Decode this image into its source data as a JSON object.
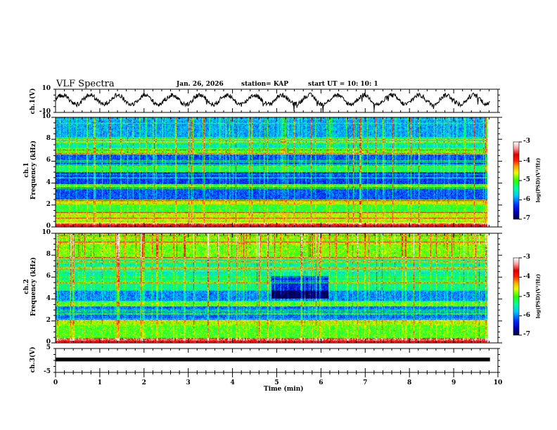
{
  "header": {
    "title": "VLF Spectra",
    "date": "Jan. 26, 2026",
    "station": "station= KAP",
    "start": "start  UT =   10: 10: 1"
  },
  "chart_data": [
    {
      "type": "line",
      "name": "ch1-waveform",
      "ylabel": "ch.1(V)",
      "ylim": [
        -10,
        10
      ],
      "yticks": [
        "10",
        "-10"
      ],
      "xlim": [
        0,
        10
      ],
      "x_end": 9.82,
      "description_values": {
        "baseline": 1.0,
        "oscillation_amplitude": 4.0,
        "oscillation_period_min": 0.62,
        "noise_amplitude": 2.0
      }
    },
    {
      "type": "heatmap",
      "name": "ch1-spectrogram",
      "ylabel_line1": "ch.1",
      "ylabel_line2": "Frequency  (kHz)",
      "ylim": [
        0,
        10
      ],
      "yticks": [
        "0",
        "2",
        "4",
        "6",
        "8",
        "10"
      ],
      "xlim": [
        0,
        10
      ],
      "x_end": 9.82,
      "colorbar": {
        "label": "log(PSD)(V²/Hz)",
        "range": [
          -7,
          -3
        ],
        "ticks": [
          "-3",
          "-4",
          "-5",
          "-6",
          "-7"
        ]
      },
      "bands_khz": [
        {
          "f0": 0.0,
          "f1": 0.35,
          "level": -3.6
        },
        {
          "f0": 0.35,
          "f1": 1.3,
          "level": -4.7
        },
        {
          "f0": 1.3,
          "f1": 2.05,
          "level": -5.1
        },
        {
          "f0": 2.05,
          "f1": 2.5,
          "level": -4.6
        },
        {
          "f0": 2.5,
          "f1": 3.6,
          "level": -6.2
        },
        {
          "f0": 3.6,
          "f1": 3.9,
          "level": -5.0
        },
        {
          "f0": 3.9,
          "f1": 5.0,
          "level": -6.3
        },
        {
          "f0": 5.0,
          "f1": 5.6,
          "level": -5.3
        },
        {
          "f0": 5.6,
          "f1": 6.6,
          "level": -6.2
        },
        {
          "f0": 6.6,
          "f1": 7.2,
          "level": -5.0
        },
        {
          "f0": 7.2,
          "f1": 8.2,
          "level": -5.6
        },
        {
          "f0": 8.2,
          "f1": 10.0,
          "level": -5.9
        }
      ]
    },
    {
      "type": "heatmap",
      "name": "ch2-spectrogram",
      "ylabel_line1": "ch.2",
      "ylabel_line2": "Frequency  (kHz)",
      "ylim": [
        0,
        10
      ],
      "yticks": [
        "0",
        "2",
        "4",
        "6",
        "8",
        "10"
      ],
      "xlim": [
        0,
        10
      ],
      "x_end": 9.82,
      "colorbar": {
        "label": "log(PSD)(V²/Hz)",
        "range": [
          -7,
          -3
        ],
        "ticks": [
          "-3",
          "-4",
          "-5",
          "-6",
          "-7"
        ]
      },
      "bands_khz": [
        {
          "f0": 0.0,
          "f1": 0.4,
          "level": -3.5
        },
        {
          "f0": 0.4,
          "f1": 1.6,
          "level": -5.0
        },
        {
          "f0": 1.6,
          "f1": 2.1,
          "level": -4.8
        },
        {
          "f0": 2.1,
          "f1": 3.3,
          "level": -6.1
        },
        {
          "f0": 3.3,
          "f1": 3.8,
          "level": -5.0
        },
        {
          "f0": 3.8,
          "f1": 4.8,
          "level": -6.0
        },
        {
          "f0": 4.8,
          "f1": 6.2,
          "level": -5.4
        },
        {
          "f0": 6.2,
          "f1": 7.8,
          "level": -5.5
        },
        {
          "f0": 7.8,
          "f1": 10.0,
          "level": -4.9
        }
      ]
    },
    {
      "type": "line",
      "name": "ch3-waveform",
      "ylabel": "ch.3(V)",
      "ylim": [
        -5,
        5
      ],
      "yticks": [
        "5",
        "-5"
      ],
      "xlim": [
        0,
        10
      ],
      "x_end": 9.82,
      "description_values": {
        "baseline": 0.4,
        "band_halfwidth": 0.8
      }
    }
  ],
  "xaxis": {
    "label": "Time  (min)",
    "ticks": [
      "0",
      "1",
      "2",
      "3",
      "4",
      "5",
      "6",
      "7",
      "8",
      "9",
      "10"
    ]
  }
}
